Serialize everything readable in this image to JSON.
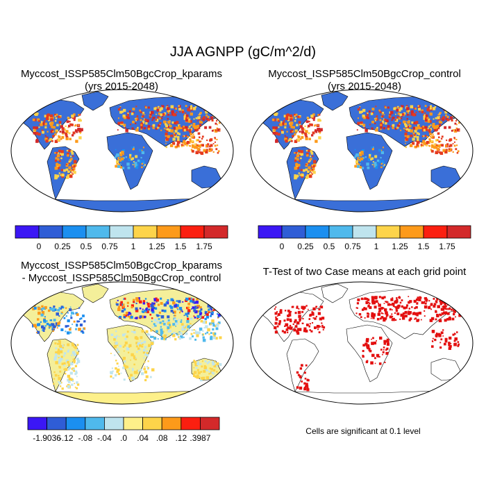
{
  "main_title": "JJA AGNPP (gC/m^2/d)",
  "panels": {
    "top_left": {
      "line1": "Myccost_ISSP585Clm50BgcCrop_kparams",
      "line2": "(yrs 2015-2048)"
    },
    "top_right": {
      "line1": "Myccost_ISSP585Clm50BgcCrop_control",
      "line2": "(yrs 2015-2048)"
    },
    "bottom_left": {
      "line1": "Myccost_ISSP585Clm50BgcCrop_kparams",
      "line2": "- Myccost_ISSP585Clm50BgcCrop_control"
    },
    "bottom_right": {
      "line1": "T-Test of two Case means at each grid point"
    }
  },
  "colorbar_abs": {
    "colors": [
      "#3b17f5",
      "#2f5dd6",
      "#1b8ff0",
      "#4fb9ec",
      "#bfe4ee",
      "#fdd44a",
      "#fd9a1a",
      "#fb1f10",
      "#d3292a"
    ],
    "labels": [
      "0",
      "0.25",
      "0.5",
      "0.75",
      "1",
      "1.25",
      "1.5",
      "1.75"
    ]
  },
  "colorbar_diff": {
    "colors": [
      "#3b17f5",
      "#2f5dd6",
      "#1b8ff0",
      "#4fb9ec",
      "#bfe4ee",
      "#fef08a",
      "#fdd44a",
      "#fd9a1a",
      "#fb1f10",
      "#d3292a"
    ],
    "labels": [
      "-1.9036",
      "-.12",
      "-.08",
      "-.04",
      ".0",
      ".04",
      ".08",
      ".12",
      ".3987"
    ]
  },
  "significance_note": "Cells are significant at 0.1 level",
  "map_colors": {
    "ocean": "#ffffff",
    "land_base": "#3a6fd8",
    "productive": "#e53a1f",
    "diff_base": "#f4ef9a",
    "sig_mark": "#e31010"
  }
}
